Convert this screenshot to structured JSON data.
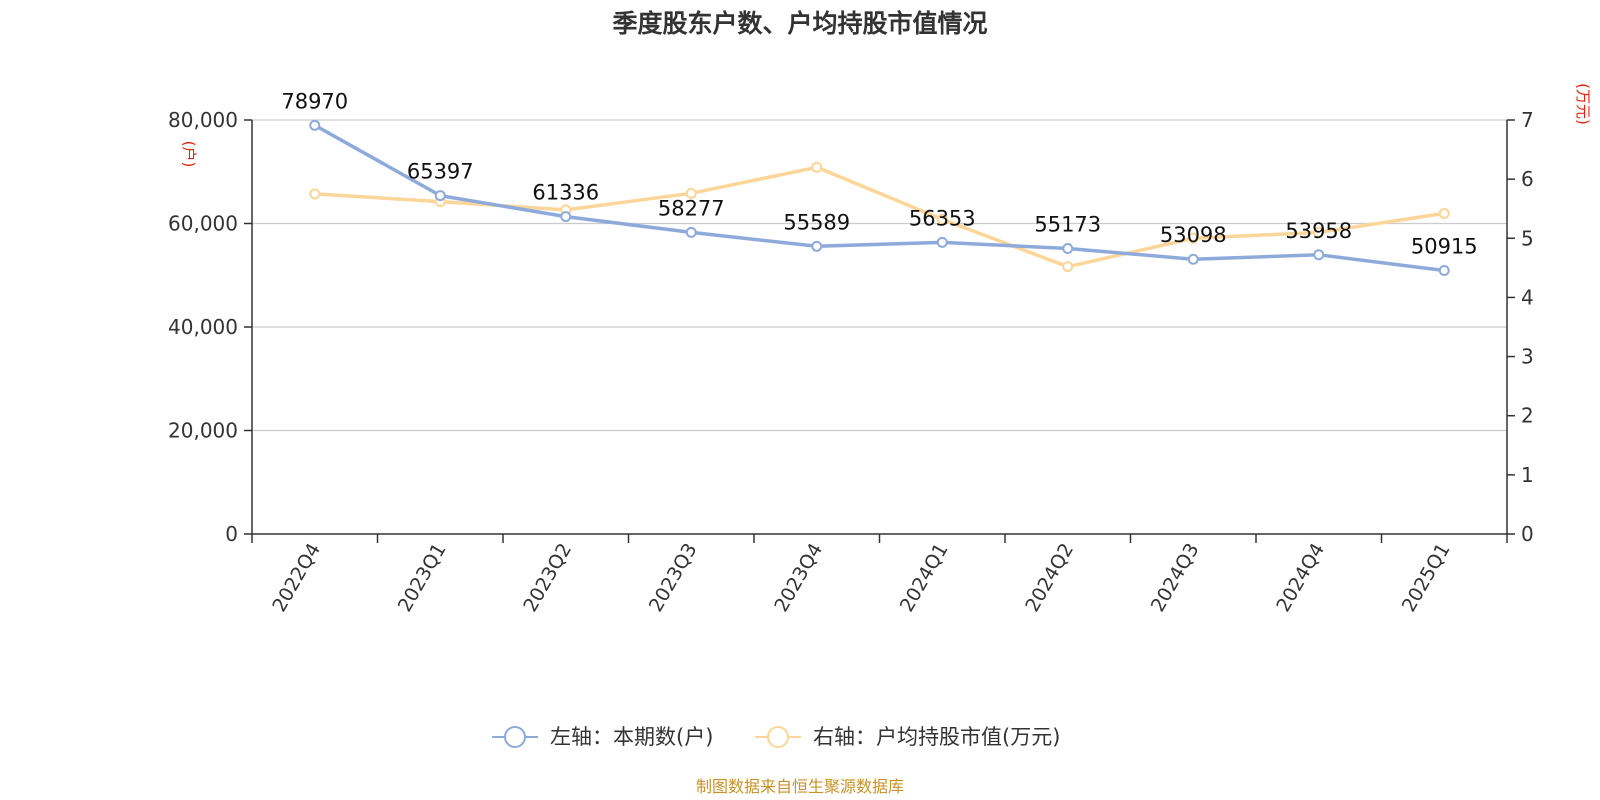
{
  "chart_data": {
    "type": "line",
    "title": "季度股东户数、户均持股市值情况",
    "categories": [
      "2022Q4",
      "2023Q1",
      "2023Q2",
      "2023Q3",
      "2023Q4",
      "2024Q1",
      "2024Q2",
      "2024Q3",
      "2024Q4",
      "2025Q1"
    ],
    "left_axis": {
      "unit": "(户)",
      "ylim": [
        0,
        80000
      ],
      "ticks": [
        "0",
        "20,000",
        "40,000",
        "60,000",
        "80,000"
      ],
      "tick_values": [
        0,
        20000,
        40000,
        60000,
        80000
      ]
    },
    "right_axis": {
      "unit": "(万元)",
      "ylim": [
        0,
        7
      ],
      "ticks": [
        "0",
        "1",
        "2",
        "3",
        "4",
        "5",
        "6",
        "7"
      ],
      "tick_values": [
        0,
        1,
        2,
        3,
        4,
        5,
        6,
        7
      ]
    },
    "series": [
      {
        "name": "左轴：本期数(户)",
        "axis": "left",
        "color": "#8eaadb",
        "values": [
          78970,
          65397,
          61336,
          58277,
          55589,
          56353,
          55173,
          53098,
          53958,
          50915
        ],
        "labels": [
          "78970",
          "65397",
          "61336",
          "58277",
          "55589",
          "56353",
          "55173",
          "53098",
          "53958",
          "50915"
        ]
      },
      {
        "name": "右轴：户均持股市值(万元)",
        "axis": "right",
        "color": "#fcd699",
        "values": [
          5.75,
          5.62,
          5.48,
          5.76,
          6.2,
          5.32,
          4.52,
          5.0,
          5.1,
          5.42
        ]
      }
    ],
    "grid": true,
    "legend": "bottom-center"
  },
  "source": "制图数据来自恒生聚源数据库"
}
